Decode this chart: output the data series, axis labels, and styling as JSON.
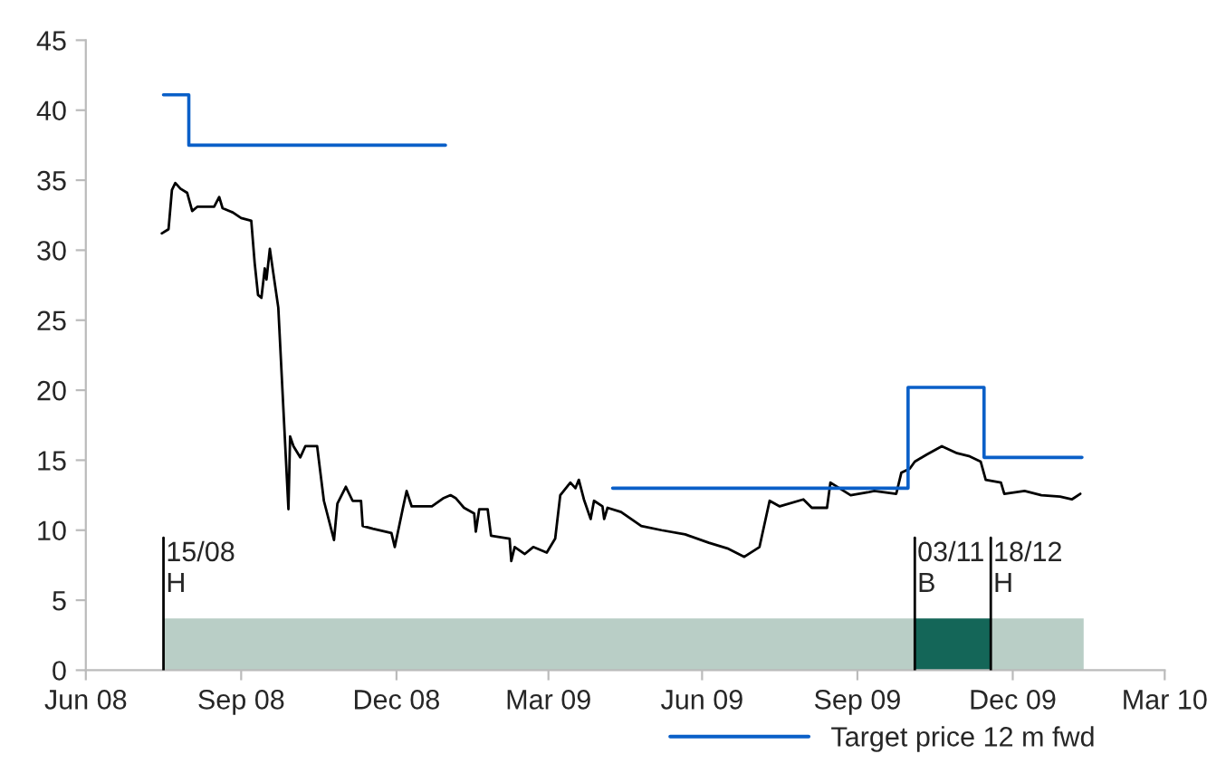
{
  "chart_data": {
    "type": "line",
    "series": [
      {
        "color": "#000000",
        "x": [
          "2008-08-14",
          "2008-08-18",
          "2008-08-20",
          "2008-08-22",
          "2008-08-25",
          "2008-08-29",
          "2008-09-01",
          "2008-09-04",
          "2008-09-14",
          "2008-09-17",
          "2008-09-19",
          "2008-09-25",
          "2008-09-30",
          "2008-10-06",
          "2008-10-08",
          "2008-10-10",
          "2008-10-12",
          "2008-10-14",
          "2008-10-15",
          "2008-10-17",
          "2008-10-19",
          "2008-10-22",
          "2008-10-28",
          "2008-10-29",
          "2008-10-31",
          "2008-11-04",
          "2008-11-07",
          "2008-11-14",
          "2008-11-18",
          "2008-11-24",
          "2008-11-26",
          "2008-12-01",
          "2008-12-05",
          "2008-12-10",
          "2008-12-11",
          "2008-12-17",
          "2008-12-28",
          "2008-12-30",
          "2009-01-04",
          "2009-01-06",
          "2009-01-09",
          "2009-01-21",
          "2009-01-28",
          "2009-02-01",
          "2009-02-04",
          "2009-02-09",
          "2009-02-15",
          "2009-02-16",
          "2009-02-18",
          "2009-02-23",
          "2009-02-25",
          "2009-03-08",
          "2009-03-09",
          "2009-03-11",
          "2009-03-17",
          "2009-03-22",
          "2009-03-30",
          "2009-04-04",
          "2009-04-07",
          "2009-04-13",
          "2009-04-16",
          "2009-04-18",
          "2009-04-21",
          "2009-04-25",
          "2009-04-27",
          "2009-05-02",
          "2009-05-03",
          "2009-05-05",
          "2009-05-13",
          "2009-05-25",
          "2009-06-06",
          "2009-06-20",
          "2009-07-04",
          "2009-07-15",
          "2009-07-25",
          "2009-08-03",
          "2009-08-09",
          "2009-08-15",
          "2009-08-29",
          "2009-09-03",
          "2009-09-12",
          "2009-09-14",
          "2009-09-26",
          "2009-10-06",
          "2009-10-10",
          "2009-10-23",
          "2009-10-26",
          "2009-10-31",
          "2009-11-03",
          "2009-11-10",
          "2009-11-19",
          "2009-11-28",
          "2009-12-05",
          "2009-12-12",
          "2009-12-15",
          "2009-12-24",
          "2009-12-26",
          "2010-01-07",
          "2010-01-17",
          "2010-01-28",
          "2010-02-04",
          "2010-02-09"
        ],
        "values": [
          31.2,
          31.5,
          34.3,
          34.8,
          34.4,
          34.1,
          32.8,
          33.1,
          33.1,
          33.8,
          33.0,
          32.7,
          32.3,
          32.1,
          29.1,
          26.8,
          26.6,
          28.7,
          27.9,
          30.1,
          28.4,
          25.9,
          11.5,
          16.7,
          16.0,
          15.2,
          16.0,
          16.0,
          12.1,
          9.3,
          11.9,
          13.1,
          12.1,
          12.1,
          10.3,
          10.1,
          9.8,
          8.8,
          11.7,
          12.8,
          11.7,
          11.7,
          12.3,
          12.5,
          12.3,
          11.6,
          11.2,
          9.9,
          11.5,
          11.5,
          9.6,
          9.4,
          7.8,
          8.8,
          8.3,
          8.8,
          8.4,
          9.4,
          12.5,
          13.4,
          13.0,
          13.6,
          12.2,
          10.8,
          12.1,
          11.7,
          10.8,
          11.6,
          11.3,
          10.3,
          10.0,
          9.7,
          9.1,
          8.7,
          8.1,
          8.8,
          12.1,
          11.7,
          12.2,
          11.6,
          11.6,
          13.4,
          12.5,
          12.7,
          12.8,
          12.6,
          14.1,
          14.4,
          14.9,
          15.4,
          16.0,
          15.5,
          15.3,
          14.9,
          13.6,
          13.4,
          12.6,
          12.8,
          12.5,
          12.4,
          12.2,
          12.6
        ]
      },
      {
        "type": "step",
        "name": "Target price 12 m fwd",
        "color": "#0a5fc8",
        "x": [
          "2008-08-15",
          "2008-08-30",
          "2009-01-28",
          "2009-01-29",
          "2009-05-08",
          "2009-10-30",
          "2009-12-14",
          "2010-02-10"
        ],
        "values": [
          41.1,
          37.5,
          37.5,
          null,
          13.0,
          20.2,
          15.2,
          15.2
        ]
      }
    ],
    "xlim": [
      "2008-06-30",
      "2010-03-31"
    ],
    "xticks": [
      {
        "value": "2008-06-30",
        "label": "Jun 08"
      },
      {
        "value": "2008-09-30",
        "label": "Sep 08"
      },
      {
        "value": "2008-12-31",
        "label": "Dec 08"
      },
      {
        "value": "2009-03-31",
        "label": "Mar 09"
      },
      {
        "value": "2009-06-30",
        "label": "Jun 09"
      },
      {
        "value": "2009-09-30",
        "label": "Sep 09"
      },
      {
        "value": "2009-12-31",
        "label": "Dec 09"
      },
      {
        "value": "2010-03-31",
        "label": "Mar 10"
      }
    ],
    "ylim": [
      0,
      45
    ],
    "yticks": [
      0,
      5,
      10,
      15,
      20,
      25,
      30,
      35,
      40,
      45
    ],
    "bands": [
      {
        "axis": "x",
        "from": "2008-08-15",
        "to": "2009-11-03",
        "color": "#b9cec6"
      },
      {
        "axis": "x",
        "from": "2009-11-03",
        "to": "2009-12-18",
        "color": "#146658"
      },
      {
        "axis": "x",
        "from": "2009-12-18",
        "to": "2010-02-11",
        "color": "#b9cec6"
      }
    ],
    "ref_lines": [
      {
        "axis": "x",
        "value": "2008-08-15",
        "label": "15/08\nH",
        "color": "#000000"
      },
      {
        "axis": "x",
        "value": "2009-11-03",
        "label": "03/11\nB",
        "color": "#000000"
      },
      {
        "axis": "x",
        "value": "2009-12-18",
        "label": "18/12\nH",
        "color": "#000000"
      }
    ],
    "grid": false,
    "legend": "bottom",
    "marker": "none",
    "line_style": "solid"
  }
}
